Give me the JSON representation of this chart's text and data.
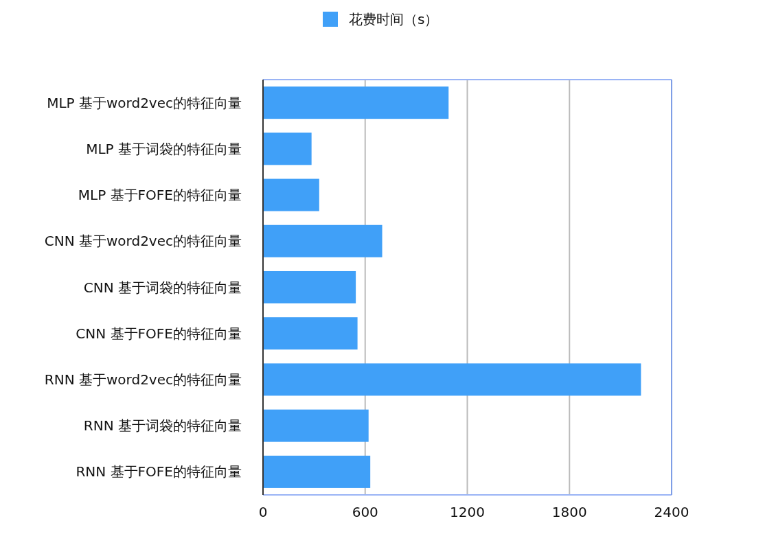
{
  "chart_data": {
    "type": "bar",
    "orientation": "horizontal",
    "categories": [
      "MLP 基于word2vec的特征向量",
      "MLP 基于词袋的特征向量",
      "MLP 基于FOFE的特征向量",
      "CNN 基于word2vec的特征向量",
      "CNN 基于词袋的特征向量",
      "CNN 基于FOFE的特征向量",
      "RNN 基于word2vec的特征向量",
      "RNN 基于词袋的特征向量",
      "RNN 基于FOFE的特征向量"
    ],
    "series": [
      {
        "name": "花费时间（s）",
        "color": "#40a0f8",
        "values": [
          1090,
          285,
          330,
          700,
          545,
          555,
          2220,
          620,
          630
        ]
      }
    ],
    "xlim": [
      0,
      2400
    ],
    "xticks": [
      0,
      600,
      1200,
      1800,
      2400
    ],
    "grid": "x",
    "legend": "top"
  }
}
